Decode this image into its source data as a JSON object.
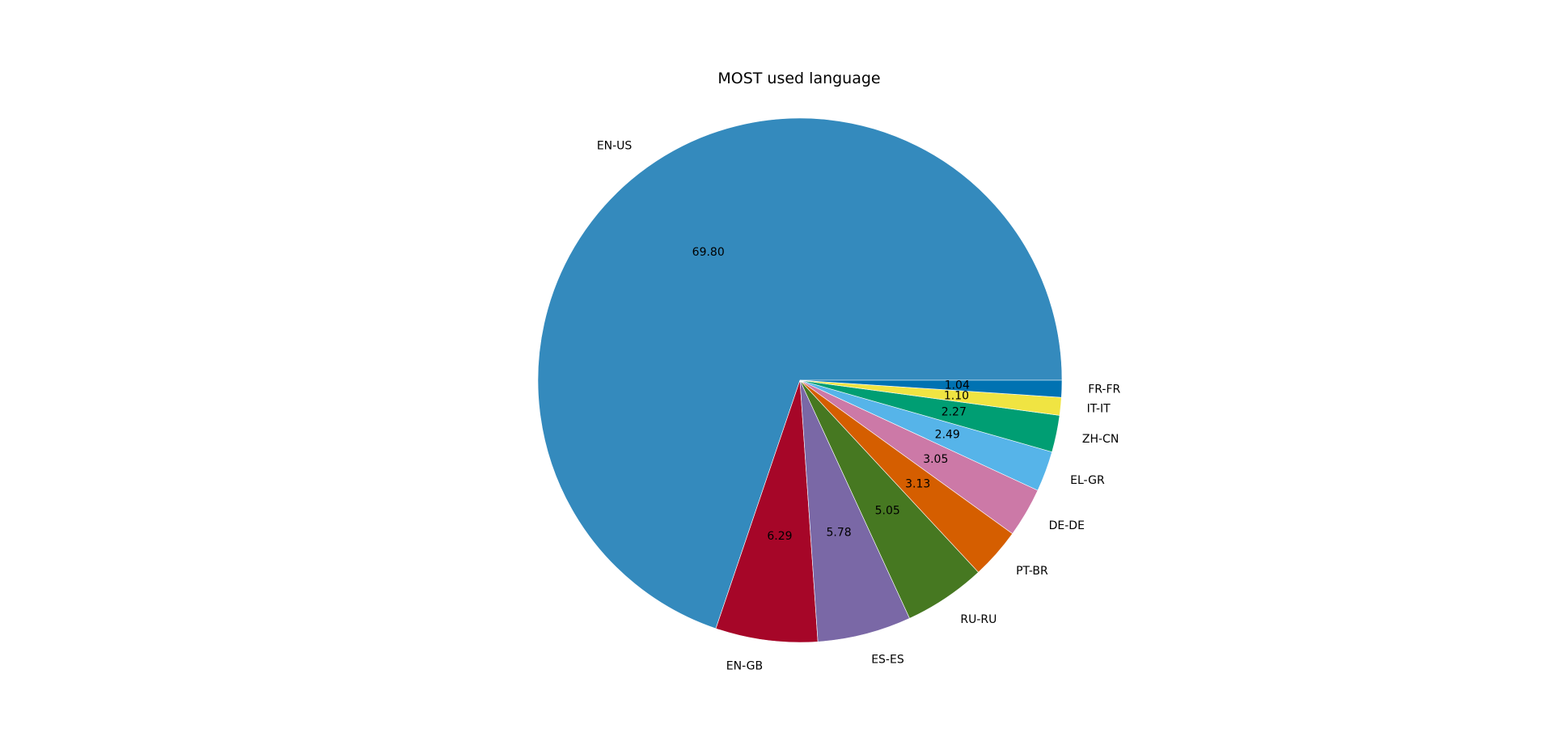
{
  "chart_data": {
    "type": "pie",
    "title": "MOST used language",
    "start_angle": "0",
    "direction": "counterclockwise",
    "slices": [
      {
        "label": "EN-US",
        "value": 69.8,
        "pct_label": "69.80",
        "color": "#348abd"
      },
      {
        "label": "EN-GB",
        "value": 6.29,
        "pct_label": "6.29",
        "color": "#a60628"
      },
      {
        "label": "ES-ES",
        "value": 5.78,
        "pct_label": "5.78",
        "color": "#7a68a6"
      },
      {
        "label": "RU-RU",
        "value": 5.05,
        "pct_label": "5.05",
        "color": "#467821"
      },
      {
        "label": "PT-BR",
        "value": 3.13,
        "pct_label": "3.13",
        "color": "#d55e00"
      },
      {
        "label": "DE-DE",
        "value": 3.05,
        "pct_label": "3.05",
        "color": "#cc79a7"
      },
      {
        "label": "EL-GR",
        "value": 2.49,
        "pct_label": "2.49",
        "color": "#56b4e9"
      },
      {
        "label": "ZH-CN",
        "value": 2.27,
        "pct_label": "2.27",
        "color": "#009e73"
      },
      {
        "label": "IT-IT",
        "value": 1.1,
        "pct_label": "1.10",
        "color": "#f0e442"
      },
      {
        "label": "FR-FR",
        "value": 1.04,
        "pct_label": "1.04",
        "color": "#0072b2"
      }
    ]
  }
}
